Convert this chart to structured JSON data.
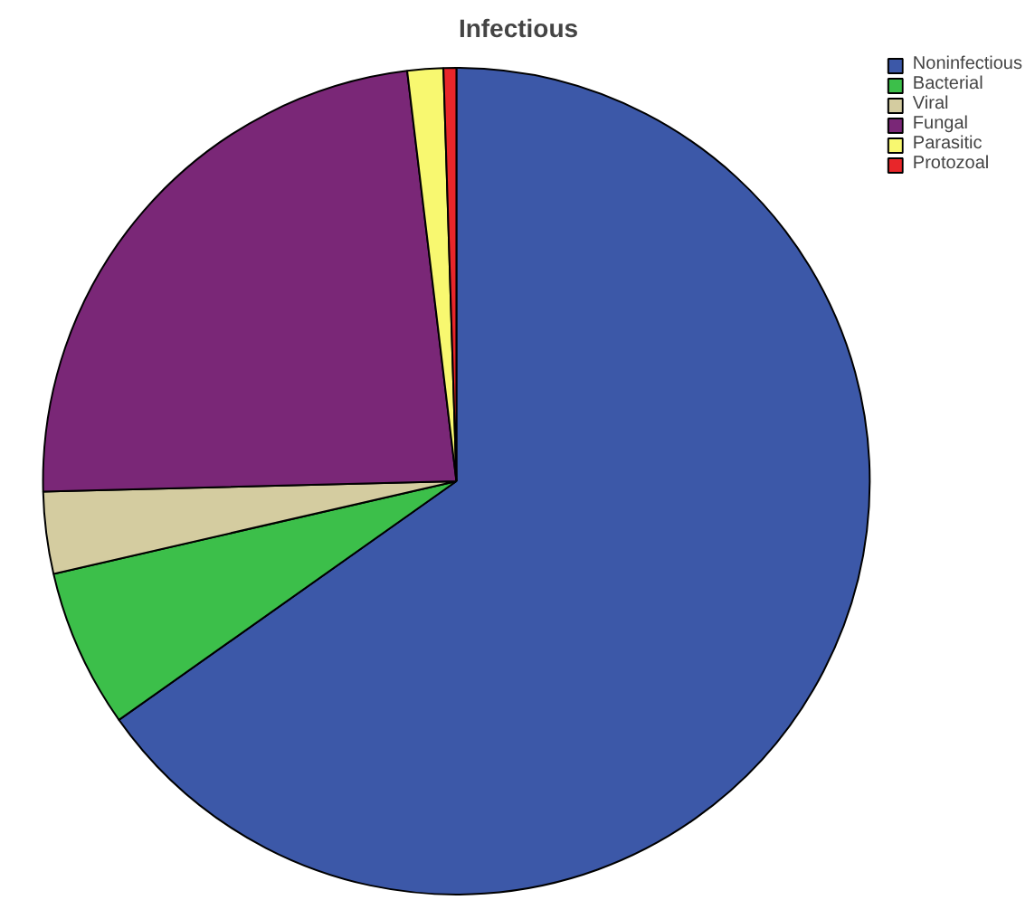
{
  "chart_data": {
    "type": "pie",
    "title": "Infectious",
    "categories": [
      "Noninfectious",
      "Bacterial",
      "Viral",
      "Fungal",
      "Parasitic",
      "Protozoal"
    ],
    "values": [
      65.2,
      6.2,
      3.2,
      23.5,
      1.4,
      0.5
    ],
    "colors": [
      "#3c58a8",
      "#3cbf4a",
      "#d4cca0",
      "#7a2777",
      "#f8f870",
      "#e8262a"
    ],
    "legend": "top right"
  }
}
